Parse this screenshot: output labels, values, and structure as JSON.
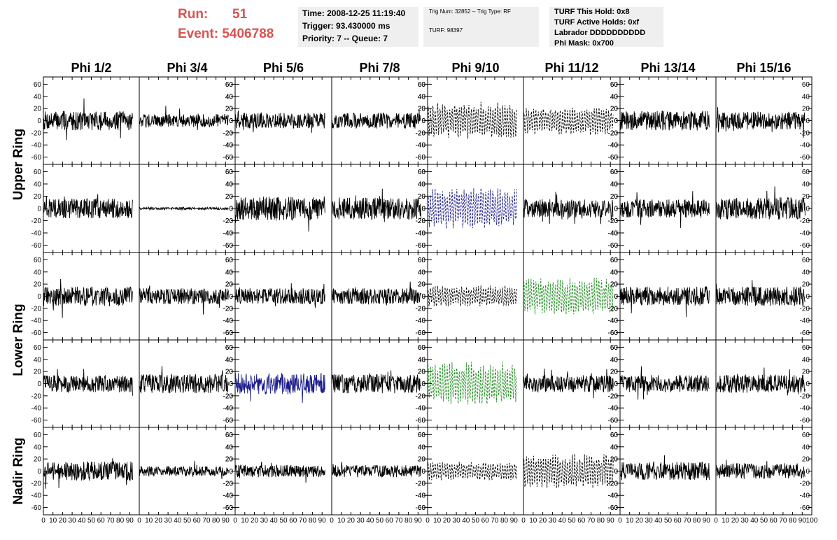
{
  "header": {
    "run_label": "Run:",
    "run_value": "51",
    "event_label": "Event:",
    "event_value": "5406788"
  },
  "info_time": {
    "time": "Time: 2008-12-25 11:19:40",
    "trigger": "Trigger: 93.430000 ms",
    "priority": "Priority: 7 -- Queue: 7"
  },
  "info_trig": {
    "trig": "Trig Num: 32852 -- Trig Type: RF",
    "turf": "TURF: 98397"
  },
  "info_turf": {
    "this_hold": "TURF This Hold: 0x8",
    "active_holds": "TURF Active Holds: 0xf",
    "labrador": "Labrador DDDDDDDDDD",
    "phi_mask": "Phi Mask: 0x700"
  },
  "chart_data": {
    "type": "line",
    "layout": "grid",
    "columns": [
      "Phi 1/2",
      "Phi 3/4",
      "Phi 5/6",
      "Phi 7/8",
      "Phi 9/10",
      "Phi 11/12",
      "Phi 13/14",
      "Phi 15/16"
    ],
    "row_groups": [
      "Upper Ring",
      "Lower Ring",
      "Nadir Ring"
    ],
    "rows": 5,
    "xlim": [
      0,
      100
    ],
    "ylim": [
      -72,
      72
    ],
    "x_ticks": [
      0,
      10,
      20,
      30,
      40,
      50,
      60,
      70,
      80,
      90,
      100
    ],
    "y_ticks": [
      -60,
      -40,
      -20,
      0,
      20,
      40,
      60
    ],
    "y_tick_side": "odd columns on left, even columns on right",
    "colors": {
      "default": "#000000",
      "blue": "#1c1c8c",
      "green": "#1e8c1e"
    },
    "panels": [
      {
        "row": 0,
        "col": 0,
        "amp": 16,
        "color": "default",
        "style": "solid"
      },
      {
        "row": 0,
        "col": 1,
        "amp": 11,
        "color": "default",
        "style": "solid"
      },
      {
        "row": 0,
        "col": 2,
        "amp": 13,
        "color": "default",
        "style": "solid"
      },
      {
        "row": 0,
        "col": 3,
        "amp": 13,
        "color": "default",
        "style": "solid"
      },
      {
        "row": 0,
        "col": 4,
        "amp": 26,
        "color": "default",
        "style": "dashed"
      },
      {
        "row": 0,
        "col": 5,
        "amp": 20,
        "color": "default",
        "style": "dashed"
      },
      {
        "row": 0,
        "col": 6,
        "amp": 16,
        "color": "default",
        "style": "solid"
      },
      {
        "row": 0,
        "col": 7,
        "amp": 15,
        "color": "default",
        "style": "solid"
      },
      {
        "row": 1,
        "col": 0,
        "amp": 16,
        "color": "default",
        "style": "solid"
      },
      {
        "row": 1,
        "col": 1,
        "amp": 2,
        "color": "default",
        "style": "solid"
      },
      {
        "row": 1,
        "col": 2,
        "amp": 20,
        "color": "default",
        "style": "solid"
      },
      {
        "row": 1,
        "col": 3,
        "amp": 18,
        "color": "default",
        "style": "solid"
      },
      {
        "row": 1,
        "col": 4,
        "amp": 28,
        "color": "blue",
        "style": "dashed"
      },
      {
        "row": 1,
        "col": 5,
        "amp": 15,
        "color": "default",
        "style": "solid"
      },
      {
        "row": 1,
        "col": 6,
        "amp": 15,
        "color": "default",
        "style": "solid"
      },
      {
        "row": 1,
        "col": 7,
        "amp": 18,
        "color": "default",
        "style": "solid"
      },
      {
        "row": 2,
        "col": 0,
        "amp": 16,
        "color": "default",
        "style": "solid"
      },
      {
        "row": 2,
        "col": 1,
        "amp": 13,
        "color": "default",
        "style": "solid"
      },
      {
        "row": 2,
        "col": 2,
        "amp": 13,
        "color": "default",
        "style": "solid"
      },
      {
        "row": 2,
        "col": 3,
        "amp": 13,
        "color": "default",
        "style": "solid"
      },
      {
        "row": 2,
        "col": 4,
        "amp": 15,
        "color": "default",
        "style": "dashed"
      },
      {
        "row": 2,
        "col": 5,
        "amp": 26,
        "color": "green",
        "style": "dashed"
      },
      {
        "row": 2,
        "col": 6,
        "amp": 16,
        "color": "default",
        "style": "solid"
      },
      {
        "row": 2,
        "col": 7,
        "amp": 16,
        "color": "default",
        "style": "solid"
      },
      {
        "row": 3,
        "col": 0,
        "amp": 14,
        "color": "default",
        "style": "solid"
      },
      {
        "row": 3,
        "col": 1,
        "amp": 16,
        "color": "default",
        "style": "solid"
      },
      {
        "row": 3,
        "col": 2,
        "amp": 18,
        "color": "blue",
        "style": "solid"
      },
      {
        "row": 3,
        "col": 3,
        "amp": 16,
        "color": "default",
        "style": "solid"
      },
      {
        "row": 3,
        "col": 4,
        "amp": 30,
        "color": "green",
        "style": "dashed"
      },
      {
        "row": 3,
        "col": 5,
        "amp": 14,
        "color": "default",
        "style": "solid"
      },
      {
        "row": 3,
        "col": 6,
        "amp": 14,
        "color": "default",
        "style": "solid"
      },
      {
        "row": 3,
        "col": 7,
        "amp": 15,
        "color": "default",
        "style": "solid"
      },
      {
        "row": 4,
        "col": 0,
        "amp": 16,
        "color": "default",
        "style": "solid"
      },
      {
        "row": 4,
        "col": 1,
        "amp": 8,
        "color": "default",
        "style": "solid"
      },
      {
        "row": 4,
        "col": 2,
        "amp": 10,
        "color": "default",
        "style": "solid"
      },
      {
        "row": 4,
        "col": 3,
        "amp": 10,
        "color": "default",
        "style": "solid"
      },
      {
        "row": 4,
        "col": 4,
        "amp": 13,
        "color": "default",
        "style": "dashed"
      },
      {
        "row": 4,
        "col": 5,
        "amp": 24,
        "color": "default",
        "style": "dashed"
      },
      {
        "row": 4,
        "col": 6,
        "amp": 15,
        "color": "default",
        "style": "solid"
      },
      {
        "row": 4,
        "col": 7,
        "amp": 13,
        "color": "default",
        "style": "solid"
      }
    ]
  }
}
